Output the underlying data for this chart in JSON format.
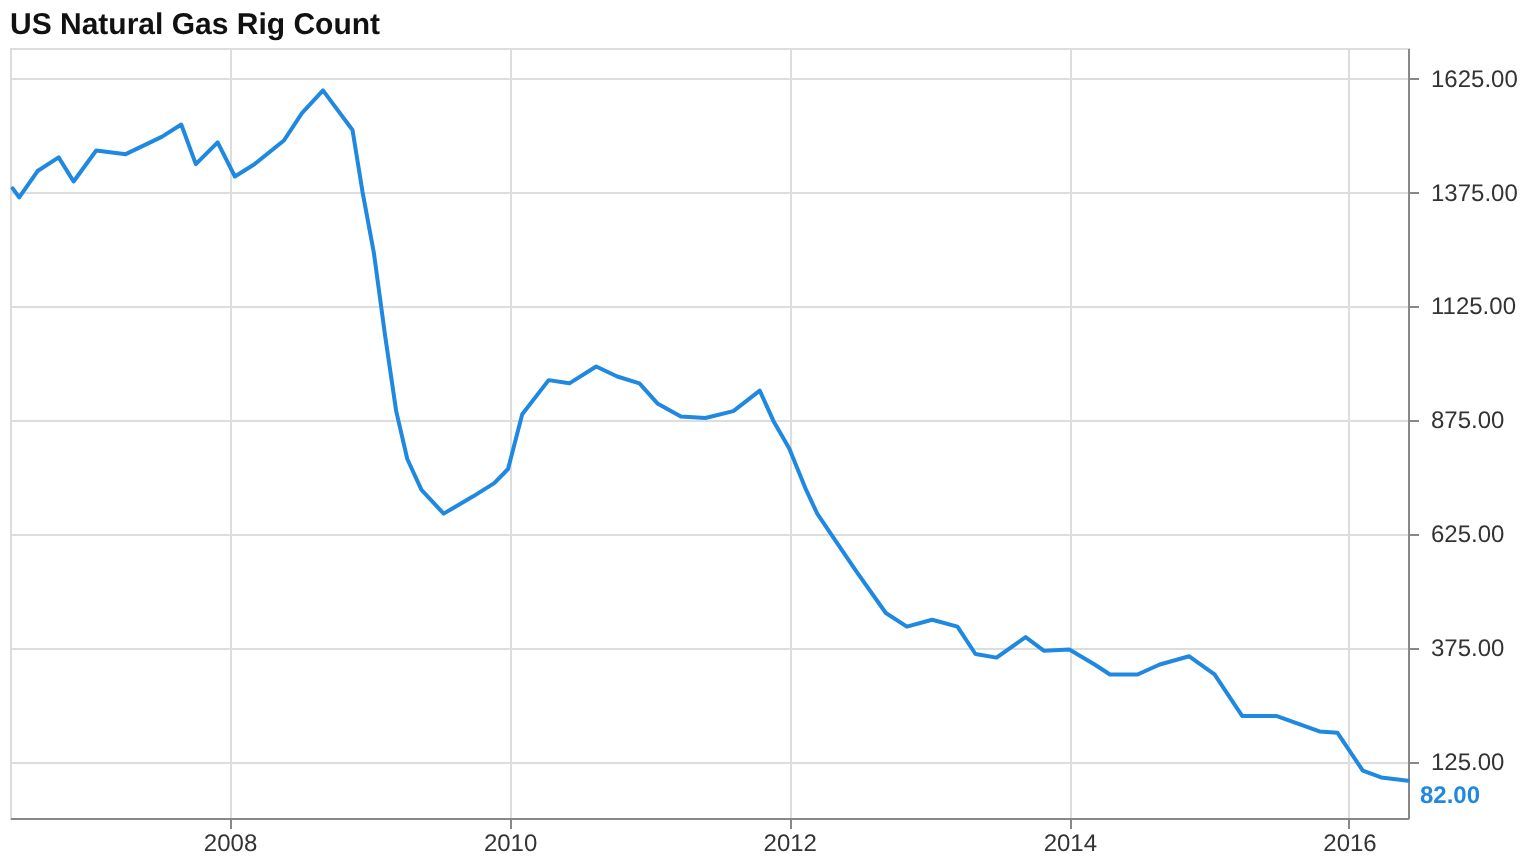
{
  "chart_data": {
    "type": "line",
    "title": "US Natural Gas Rig Count",
    "x": [
      "2006-06-14",
      "2006-07-01",
      "2006-08-18",
      "2006-10-12",
      "2006-11-20",
      "2007-01-18",
      "2007-04-05",
      "2007-07-08",
      "2007-08-28",
      "2007-10-05",
      "2007-12-01",
      "2008-01-15",
      "2008-03-06",
      "2008-05-22",
      "2008-07-08",
      "2008-09-01",
      "2008-10-01",
      "2008-11-17",
      "2008-12-13",
      "2009-01-12",
      "2009-02-10",
      "2009-03-11",
      "2009-04-09",
      "2009-05-16",
      "2009-07-13",
      "2009-09-28",
      "2009-11-22",
      "2009-12-28",
      "2010-02-03",
      "2010-04-13",
      "2010-06-06",
      "2010-08-15",
      "2010-10-09",
      "2010-12-06",
      "2011-01-23",
      "2011-03-24",
      "2011-05-27",
      "2011-08-08",
      "2011-10-16",
      "2011-11-21",
      "2012-01-01",
      "2012-02-14",
      "2012-03-14",
      "2012-05-01",
      "2012-06-25",
      "2012-09-09",
      "2012-11-03",
      "2013-01-08",
      "2013-03-15",
      "2013-05-01",
      "2013-06-25",
      "2013-09-09",
      "2013-10-27",
      "2014-01-01",
      "2014-03-08",
      "2014-04-17",
      "2014-06-28",
      "2014-08-25",
      "2014-11-10",
      "2015-01-15",
      "2015-03-28",
      "2015-06-25",
      "2015-10-16",
      "2015-12-02",
      "2016-02-06",
      "2016-03-25",
      "2016-06-03"
    ],
    "series": [
      {
        "color": "#1f88e0",
        "values": [
          1382,
          1362,
          1420,
          1450,
          1397,
          1465,
          1457,
          1495,
          1522,
          1435,
          1483,
          1408,
          1435,
          1487,
          1547,
          1597,
          1563,
          1510,
          1375,
          1239,
          1059,
          893,
          788,
          720,
          668,
          706,
          735,
          766,
          886,
          961,
          954,
          991,
          969,
          954,
          909,
          881,
          878,
          893,
          938,
          871,
          811,
          720,
          668,
          608,
          540,
          450,
          420,
          435,
          420,
          360,
          352,
          397,
          367,
          370,
          337,
          315,
          315,
          337,
          355,
          315,
          224,
          224,
          190,
          187,
          104,
          89,
          82
        ]
      }
    ],
    "xlim": [
      "2006-06-07",
      "2016-06-03"
    ],
    "xticks": [
      "2008",
      "2010",
      "2012",
      "2014",
      "2016"
    ],
    "ylim": [
      0,
      1690
    ],
    "yticks": [
      {
        "value": 125,
        "label": "125.00"
      },
      {
        "value": 375,
        "label": "375.00"
      },
      {
        "value": 625,
        "label": "625.00"
      },
      {
        "value": 875,
        "label": "875.00"
      },
      {
        "value": 1125,
        "label": "1125.00"
      },
      {
        "value": 1375,
        "label": "1375.00"
      },
      {
        "value": 1625,
        "label": "1625.00"
      }
    ],
    "annotations": [
      {
        "text": "82.00",
        "x": "2016-06-03",
        "y": 82
      }
    ],
    "grid": true,
    "marker": "none",
    "line_style": "solid"
  }
}
